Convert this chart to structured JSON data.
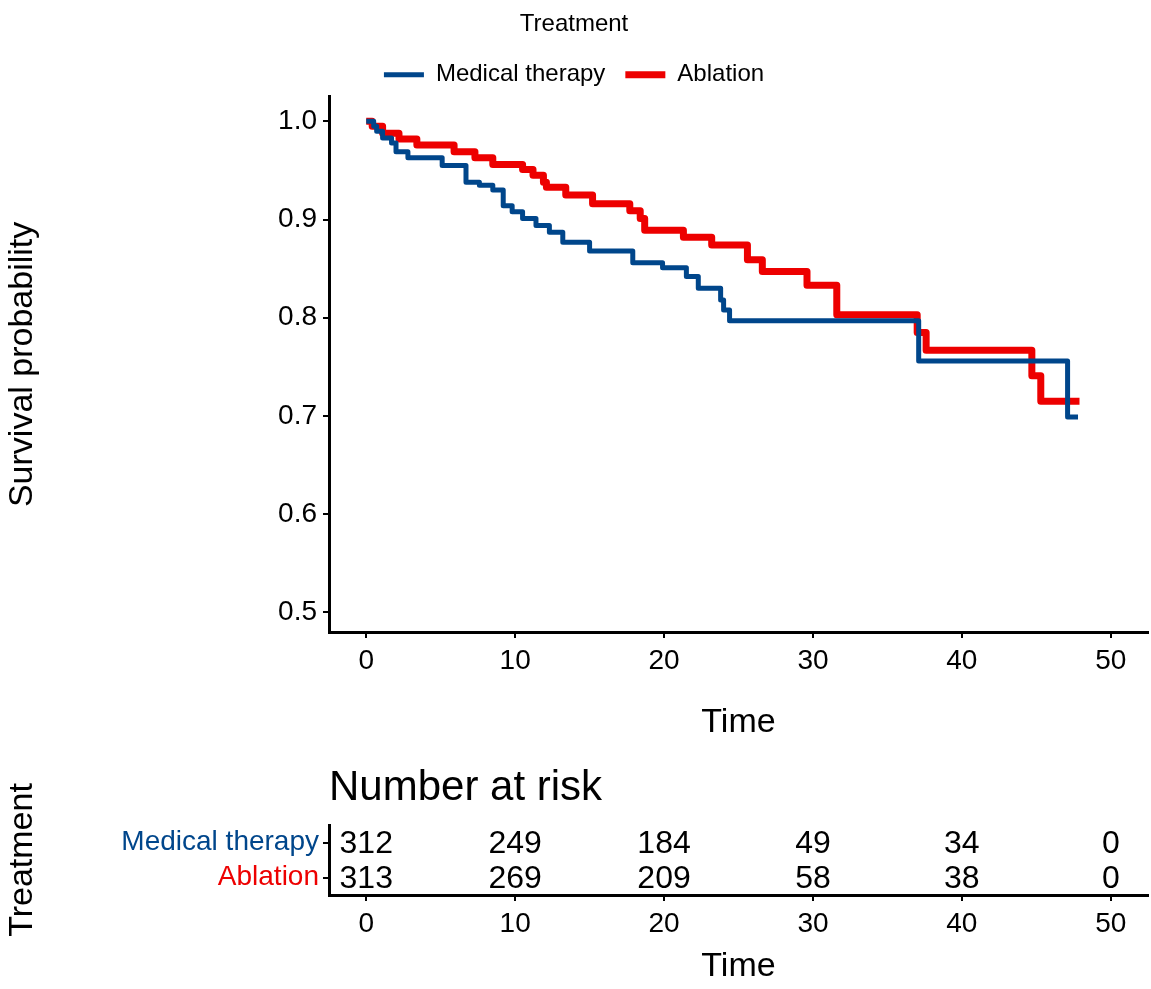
{
  "chart_data": [
    {
      "type": "step",
      "xlabel": "Time",
      "ylabel": "Survival probability",
      "legend_title": "Treatment",
      "legend": "top",
      "grid": false,
      "xlim": [
        -2.5,
        52.5
      ],
      "xticks": [
        0,
        10,
        20,
        30,
        40,
        50
      ],
      "ylim": [
        0.48,
        1.025
      ],
      "yticks": [
        0.5,
        0.6,
        0.7,
        0.8,
        0.9,
        {
          "value": 1,
          "label": "1.0"
        }
      ],
      "series": [
        {
          "name": "Medical therapy",
          "color": "#00468b",
          "x": [
            0,
            0.5,
            0.7,
            1.1,
            1.7,
            2.0,
            2.8,
            5.1,
            6.7,
            7.6,
            8.5,
            9.2,
            9.8,
            10.5,
            11.4,
            12.3,
            13.2,
            15.0,
            17.9,
            19.9,
            21.5,
            22.3,
            23.8,
            24.0,
            24.4,
            37.1,
            47.1,
            47.8
          ],
          "values": [
            1.0,
            0.995,
            0.99,
            0.983,
            0.978,
            0.969,
            0.963,
            0.955,
            0.938,
            0.935,
            0.93,
            0.914,
            0.908,
            0.901,
            0.894,
            0.887,
            0.877,
            0.868,
            0.856,
            0.851,
            0.842,
            0.83,
            0.818,
            0.808,
            0.797,
            0.756,
            0.699,
            0.699
          ]
        },
        {
          "name": "Ablation",
          "color": "#ed0000",
          "x": [
            0,
            0.4,
            1.1,
            2.2,
            3.4,
            5.9,
            7.3,
            8.5,
            10.5,
            11.2,
            11.9,
            12.1,
            13.4,
            15.2,
            17.7,
            18.4,
            18.7,
            21.3,
            23.2,
            25.6,
            26.6,
            29.6,
            31.6,
            37.0,
            37.6,
            44.7,
            45.3,
            47.9
          ],
          "values": [
            1.0,
            0.995,
            0.988,
            0.982,
            0.976,
            0.969,
            0.963,
            0.956,
            0.951,
            0.945,
            0.938,
            0.933,
            0.925,
            0.916,
            0.909,
            0.901,
            0.889,
            0.882,
            0.874,
            0.859,
            0.847,
            0.833,
            0.803,
            0.785,
            0.767,
            0.741,
            0.715,
            0.715
          ]
        }
      ]
    },
    {
      "type": "heatmap",
      "title": "Number at risk",
      "xlabel": "Time",
      "ylabel": "Treatment",
      "categories": [
        "0",
        "10",
        "20",
        "30",
        "40",
        "50"
      ],
      "y_categories": [
        "Medical therapy",
        "Ablation"
      ],
      "data_labels": true,
      "cells": [
        [
          312,
          249,
          184,
          49,
          34,
          0
        ],
        [
          313,
          269,
          209,
          58,
          38,
          0
        ]
      ]
    }
  ]
}
